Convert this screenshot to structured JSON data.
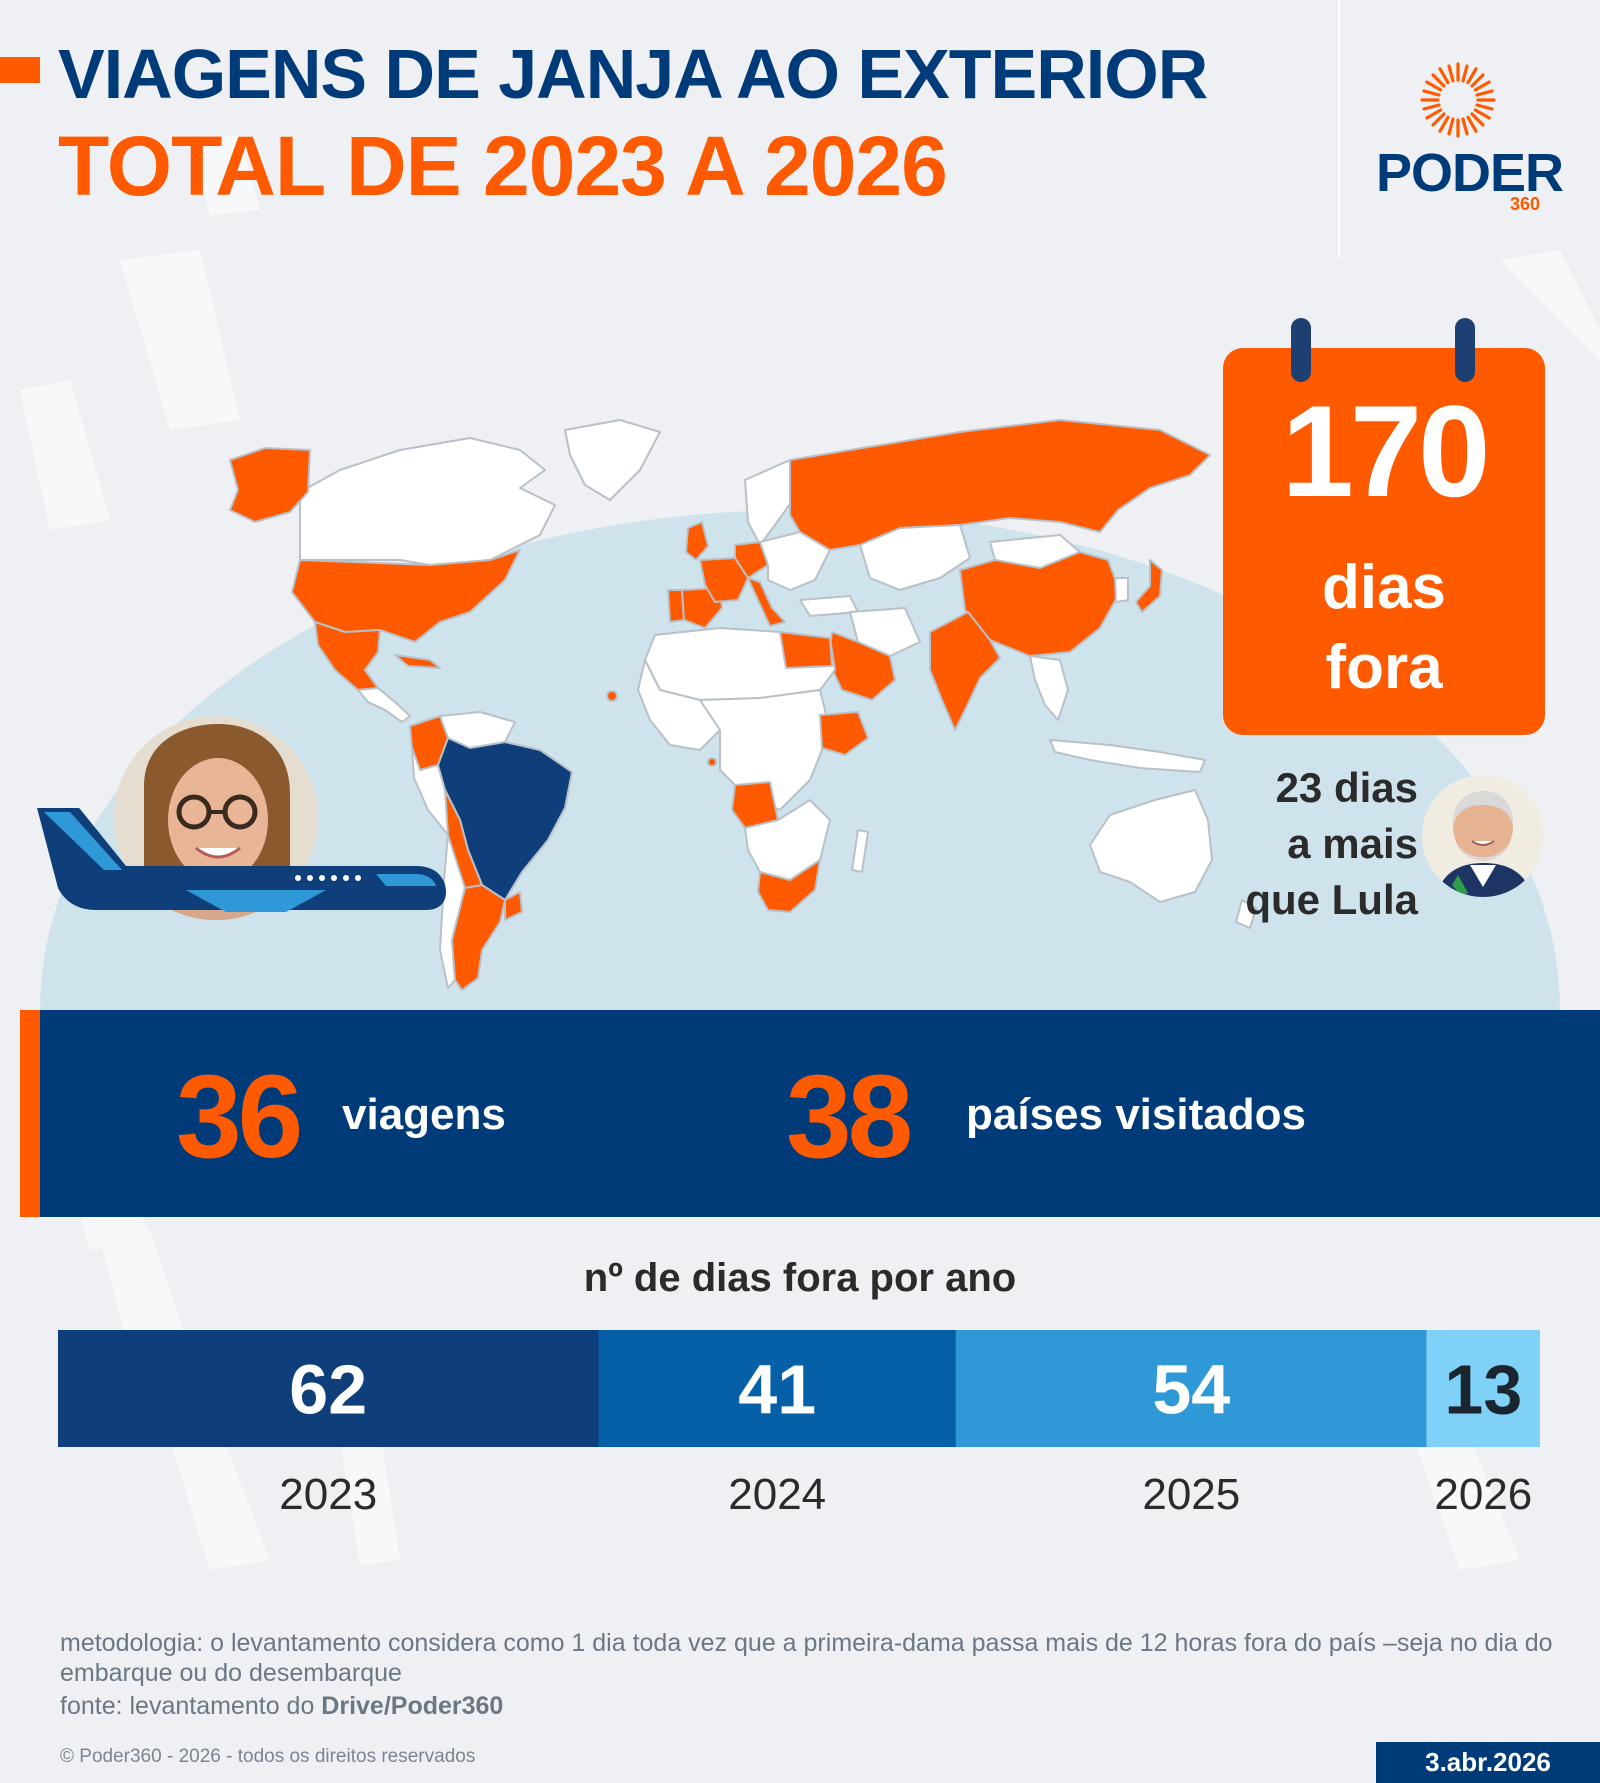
{
  "header": {
    "title_line1": "VIAGENS DE JANJA AO EXTERIOR",
    "title_line2": "TOTAL DE 2023 A 2026"
  },
  "logo": {
    "word": "PODER",
    "sub": "360"
  },
  "calendar": {
    "number": "170",
    "unit_line1": "dias",
    "unit_line2": "fora"
  },
  "lula_note": {
    "line1": "23 dias",
    "line2": "a mais",
    "line3": "que Lula"
  },
  "stats": {
    "trips_value": "36",
    "trips_label": "viagens",
    "countries_value": "38",
    "countries_label": "países visitados"
  },
  "colors": {
    "navy": "#003b79",
    "orange": "#ff5a00",
    "bar_2023": "#0f3f7a",
    "bar_2024": "#0560a8",
    "bar_2025": "#2f98d6",
    "bar_2026": "#7fd1f7",
    "visited_country": "#ff5a00",
    "brazil": "#0f3f7a",
    "other_country": "#ffffff"
  },
  "chart_data": {
    "type": "bar",
    "title": "nº de dias fora por ano",
    "categories": [
      "2023",
      "2024",
      "2025",
      "2026"
    ],
    "values": [
      62,
      41,
      54,
      13
    ],
    "orientation": "stacked-horizontal"
  },
  "footer": {
    "methodology": "metodologia: o levantamento considera como 1 dia toda vez que a primeira-dama passa mais de 12 horas fora do país –seja no dia do embarque ou do desembarque",
    "source_prefix": "fonte: levantamento do ",
    "source_bold": "Drive/Poder360",
    "copyright": "© Poder360 - 2026 - todos os direitos reservados",
    "date": "3.abr.2026"
  }
}
